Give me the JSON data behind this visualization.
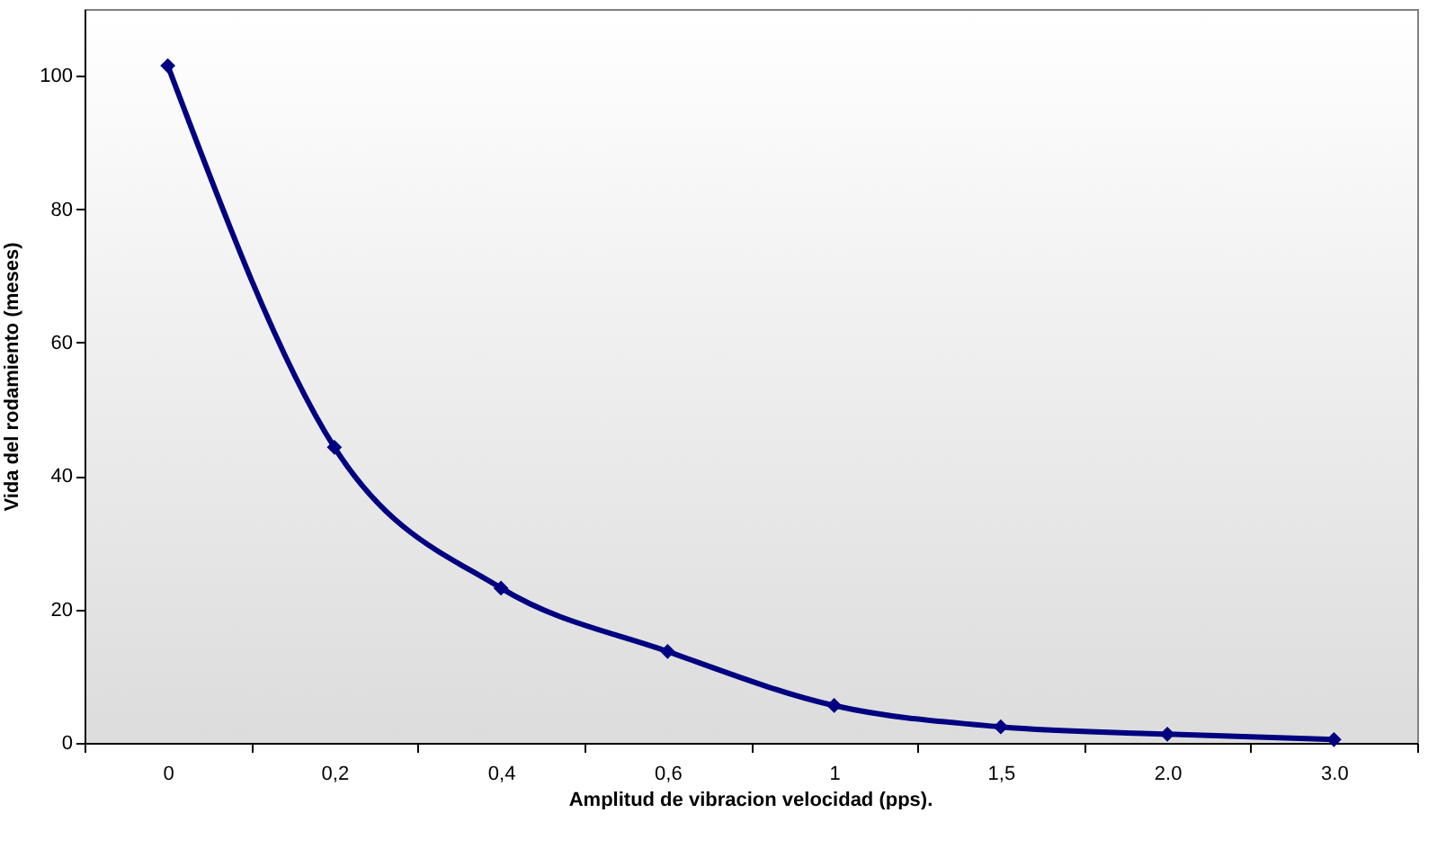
{
  "chart_data": {
    "type": "line",
    "xlabel": "Amplitud de vibracion velocidad (pps).",
    "ylabel": "Vida del rodamiento (meses)",
    "categories": [
      "0",
      "0,2",
      "0,4",
      "0,6",
      "1",
      "1,5",
      "2.0",
      "3.0"
    ],
    "series": [
      {
        "color": "#000080",
        "values": [
          101.5,
          44.3,
          23.2,
          13.7,
          5.6,
          2.4,
          1.3,
          0.5
        ]
      }
    ],
    "ylim": [
      0,
      110
    ],
    "yticks": [
      0,
      20,
      40,
      60,
      80,
      100
    ],
    "grid": false,
    "legend": false,
    "marker": "diamond",
    "line_style": "solid"
  }
}
